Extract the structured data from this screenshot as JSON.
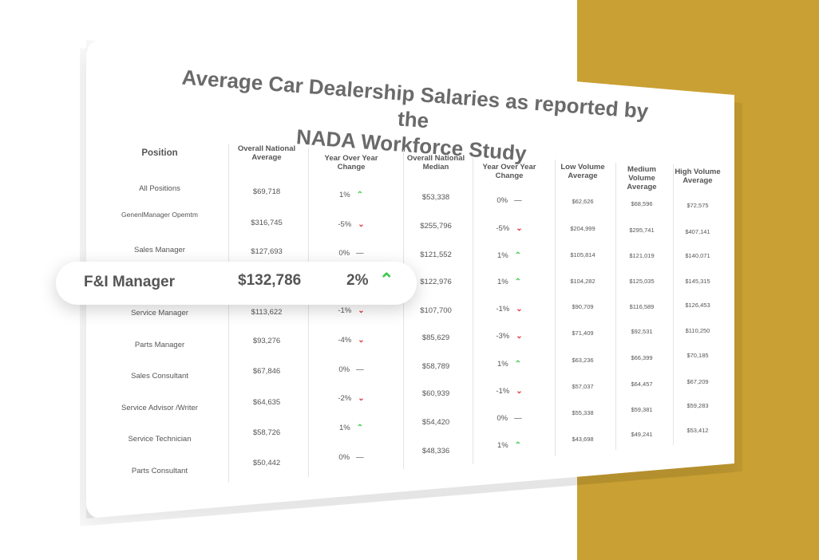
{
  "title": "Average Car Dealership Salaries as reported by the NADA Workforce Study",
  "title_line1": "Average Car Dealership Salaries as reported by the",
  "title_line2": "NADA Workforce Study",
  "headers": {
    "position": "Position",
    "overall_avg": "Overall National Average",
    "yoy1": "Year Over Year Change",
    "median": "Overall National Median",
    "yoy2": "Year Over Year Change",
    "low": "Low Volume Average",
    "medium": "Medium Volume Average",
    "high": "High Volume Average"
  },
  "rows": [
    {
      "position": "All Positions",
      "avg": "$69,718",
      "yoy1": "1%",
      "yoy1_dir": "up",
      "median": "$53,338",
      "yoy2": "0%",
      "yoy2_dir": "flat",
      "low": "$62,626",
      "med": "$68,596",
      "high": "$72,575"
    },
    {
      "position": "GenenlManager Opemtm",
      "avg": "$316,745",
      "yoy1": "-5%",
      "yoy1_dir": "down",
      "median": "$255,796",
      "yoy2": "-5%",
      "yoy2_dir": "down",
      "low": "$204,999",
      "med": "$295,741",
      "high": "$407,141"
    },
    {
      "position": "Sales Manager",
      "avg": "$127,693",
      "yoy1": "0%",
      "yoy1_dir": "flat",
      "median": "$121,552",
      "yoy2": "1%",
      "yoy2_dir": "up",
      "low": "$105,814",
      "med": "$121,019",
      "high": "$140,071"
    },
    {
      "position": "F&I Manager",
      "avg": "$132,786",
      "yoy1": "2%",
      "yoy1_dir": "up",
      "median": "$122,976",
      "yoy2": "1%",
      "yoy2_dir": "up",
      "low": "$104,282",
      "med": "$125,035",
      "high": "$145,315"
    },
    {
      "position": "Service Manager",
      "avg": "$113,622",
      "yoy1": "-1%",
      "yoy1_dir": "down",
      "median": "$107,700",
      "yoy2": "-1%",
      "yoy2_dir": "down",
      "low": "$90,709",
      "med": "$116,589",
      "high": "$126,453"
    },
    {
      "position": "Parts Manager",
      "avg": "$93,276",
      "yoy1": "-4%",
      "yoy1_dir": "down",
      "median": "$85,629",
      "yoy2": "-3%",
      "yoy2_dir": "down",
      "low": "$71,409",
      "med": "$92,531",
      "high": "$110,250"
    },
    {
      "position": "Sales Consultant",
      "avg": "$67,846",
      "yoy1": "0%",
      "yoy1_dir": "flat",
      "median": "$58,789",
      "yoy2": "1%",
      "yoy2_dir": "up",
      "low": "$63,236",
      "med": "$66,399",
      "high": "$70,185"
    },
    {
      "position": "Service Advisor /Writer",
      "avg": "$64,635",
      "yoy1": "-2%",
      "yoy1_dir": "down",
      "median": "$60,939",
      "yoy2": "-1%",
      "yoy2_dir": "down",
      "low": "$57,037",
      "med": "$64,457",
      "high": "$67,209"
    },
    {
      "position": "Service Technician",
      "avg": "$58,726",
      "yoy1": "1%",
      "yoy1_dir": "up",
      "median": "$54,420",
      "yoy2": "0%",
      "yoy2_dir": "flat",
      "low": "$55,338",
      "med": "$59,381",
      "high": "$59,283"
    },
    {
      "position": "Parts Consultant",
      "avg": "$50,442",
      "yoy1": "0%",
      "yoy1_dir": "flat",
      "median": "$48,336",
      "yoy2": "1%",
      "yoy2_dir": "up",
      "low": "$43,698",
      "med": "$49,241",
      "high": "$53,412"
    }
  ],
  "highlight": {
    "position": "F&I Manager",
    "avg": "$132,786",
    "yoy": "2%"
  },
  "colors": {
    "gold": "#c9a033",
    "up": "#3cc94a",
    "down": "#e23b3b"
  },
  "icons": {
    "up": "chevron-up-icon",
    "down": "chevron-down-icon",
    "flat": "dash-icon"
  }
}
